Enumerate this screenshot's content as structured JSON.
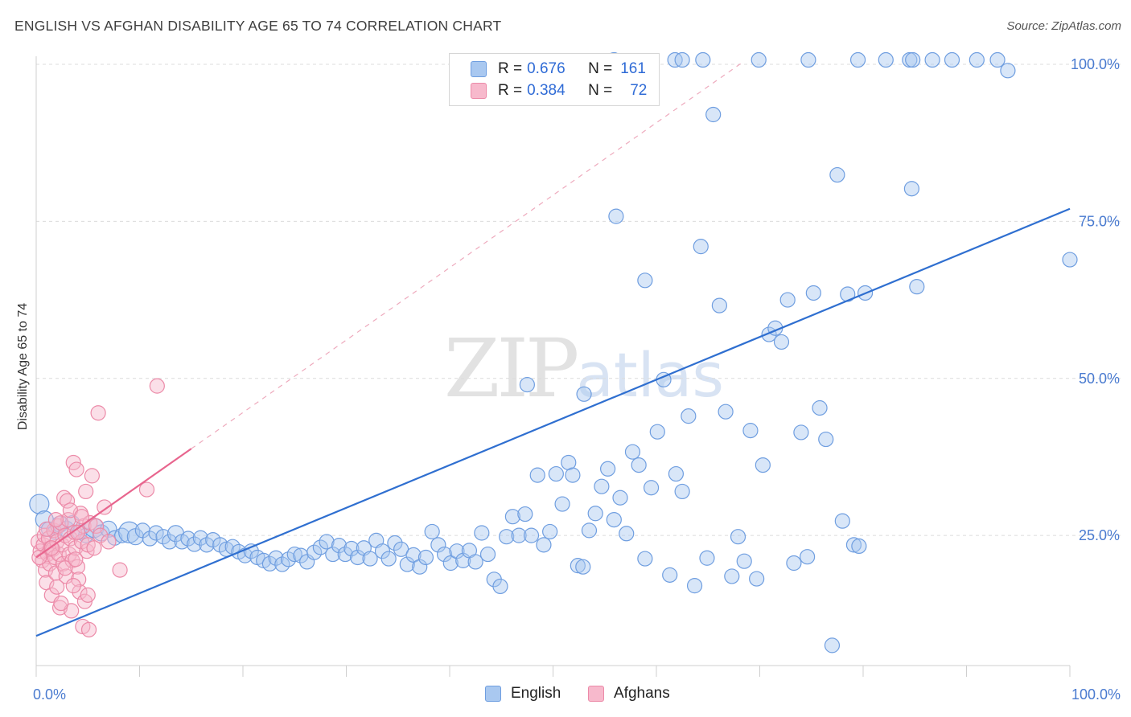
{
  "header": {
    "title": "ENGLISH VS AFGHAN DISABILITY AGE 65 TO 74 CORRELATION CHART",
    "source": "Source: ZipAtlas.com"
  },
  "watermark": {
    "zip": "ZIP",
    "atlas": "atlas"
  },
  "legend": {
    "rows": [
      {
        "r_label": "R =",
        "r_value": "0.676",
        "n_label": "N =",
        "n_value": "161",
        "color": "#a9c8f0",
        "border": "#6f9ee0"
      },
      {
        "r_label": "R =",
        "r_value": "0.384",
        "n_label": "N =",
        "n_value": "72",
        "color": "#f7b9cc",
        "border": "#ec8aa8"
      }
    ]
  },
  "bottom_legend": [
    {
      "label": "English",
      "color": "#a9c8f0",
      "border": "#6f9ee0"
    },
    {
      "label": "Afghans",
      "color": "#f7b9cc",
      "border": "#ec8aa8"
    }
  ],
  "chart_data": {
    "type": "scatter",
    "title": "ENGLISH VS AFGHAN DISABILITY AGE 65 TO 74 CORRELATION CHART",
    "xlabel": "",
    "ylabel": "Disability Age 65 to 74",
    "xlim": [
      0,
      100
    ],
    "ylim": [
      0,
      102
    ],
    "x_ticks": [
      {
        "value": 0,
        "label": "0.0%"
      },
      {
        "value": 100,
        "label": "100.0%"
      }
    ],
    "y_ticks": [
      {
        "value": 25,
        "label": "25.0%"
      },
      {
        "value": 50,
        "label": "50.0%"
      },
      {
        "value": 75,
        "label": "75.0%"
      },
      {
        "value": 100,
        "label": "100.0%"
      }
    ],
    "grid": "horizontal dashed",
    "legend_position": "top-center",
    "colors": {
      "english": "#2f6fd0",
      "afghans": "#e8658e"
    },
    "series": [
      {
        "name": "English",
        "fill": "#a9c8f0",
        "stroke": "#6f9ee0",
        "trend": {
          "x": [
            0,
            100
          ],
          "y": [
            9.0,
            77.0
          ]
        },
        "points": [
          [
            0.3,
            30.0,
            12
          ],
          [
            0.8,
            27.5,
            11
          ],
          [
            1.2,
            26.0,
            9
          ],
          [
            1.8,
            25.5,
            9
          ],
          [
            2.3,
            26.8,
            10
          ],
          [
            2.9,
            26.0,
            10
          ],
          [
            3.5,
            27.0,
            9
          ],
          [
            4.2,
            25.5,
            9
          ],
          [
            4.8,
            25.0,
            9
          ],
          [
            5.6,
            26.2,
            12
          ],
          [
            6.3,
            25.4,
            10
          ],
          [
            7.0,
            26.0,
            10
          ],
          [
            7.6,
            24.6,
            9
          ],
          [
            8.3,
            25.0,
            9
          ],
          [
            9.0,
            25.5,
            13
          ],
          [
            9.6,
            24.8,
            10
          ],
          [
            10.3,
            25.8,
            9
          ],
          [
            11.0,
            24.5,
            9
          ],
          [
            11.6,
            25.4,
            9
          ],
          [
            12.3,
            24.8,
            9
          ],
          [
            12.9,
            24.0,
            9
          ],
          [
            13.5,
            25.3,
            10
          ],
          [
            14.1,
            24.0,
            9
          ],
          [
            14.7,
            24.5,
            9
          ],
          [
            15.3,
            23.6,
            9
          ],
          [
            15.9,
            24.6,
            9
          ],
          [
            16.5,
            23.5,
            9
          ],
          [
            17.1,
            24.3,
            9
          ],
          [
            17.8,
            23.5,
            9
          ],
          [
            18.4,
            22.8,
            9
          ],
          [
            19.0,
            23.2,
            9
          ],
          [
            19.6,
            22.4,
            9
          ],
          [
            20.2,
            21.8,
            9
          ],
          [
            20.8,
            22.5,
            9
          ],
          [
            21.4,
            21.5,
            9
          ],
          [
            22.0,
            21.0,
            9
          ],
          [
            22.6,
            20.5,
            9
          ],
          [
            23.2,
            21.4,
            9
          ],
          [
            23.8,
            20.4,
            9
          ],
          [
            24.4,
            21.2,
            9
          ],
          [
            25.0,
            22.0,
            9
          ],
          [
            25.6,
            21.8,
            9
          ],
          [
            26.2,
            20.8,
            9
          ],
          [
            26.9,
            22.3,
            9
          ],
          [
            27.5,
            23.1,
            9
          ],
          [
            28.1,
            24.0,
            9
          ],
          [
            28.7,
            22.0,
            9
          ],
          [
            29.3,
            23.4,
            9
          ],
          [
            29.9,
            22.0,
            9
          ],
          [
            30.5,
            22.9,
            9
          ],
          [
            31.1,
            21.5,
            9
          ],
          [
            31.7,
            23.0,
            9
          ],
          [
            32.3,
            21.3,
            9
          ],
          [
            32.9,
            24.2,
            9
          ],
          [
            33.5,
            22.5,
            9
          ],
          [
            34.1,
            21.3,
            9
          ],
          [
            34.7,
            23.8,
            9
          ],
          [
            35.3,
            22.8,
            9
          ],
          [
            35.9,
            20.4,
            9
          ],
          [
            36.5,
            21.9,
            9
          ],
          [
            37.1,
            20.0,
            9
          ],
          [
            37.7,
            21.5,
            9
          ],
          [
            38.3,
            25.6,
            9
          ],
          [
            38.9,
            23.5,
            9
          ],
          [
            39.5,
            22.0,
            9
          ],
          [
            40.1,
            20.6,
            9
          ],
          [
            40.7,
            22.5,
            9
          ],
          [
            41.3,
            21.0,
            9
          ],
          [
            41.9,
            22.6,
            9
          ],
          [
            42.5,
            20.8,
            9
          ],
          [
            43.1,
            25.4,
            9
          ],
          [
            43.7,
            22.0,
            9
          ],
          [
            44.3,
            18.0,
            9
          ],
          [
            44.9,
            16.9,
            9
          ],
          [
            45.5,
            24.8,
            9
          ],
          [
            46.1,
            28.0,
            9
          ],
          [
            46.7,
            25.0,
            9
          ],
          [
            47.3,
            28.4,
            9
          ],
          [
            47.9,
            25.0,
            9
          ],
          [
            48.5,
            34.6,
            9
          ],
          [
            49.1,
            23.5,
            9
          ],
          [
            49.7,
            25.6,
            9
          ],
          [
            50.3,
            34.8,
            9
          ],
          [
            50.9,
            30.0,
            9
          ],
          [
            51.5,
            36.6,
            9
          ],
          [
            51.9,
            34.6,
            9
          ],
          [
            52.4,
            20.2,
            9
          ],
          [
            52.9,
            20.0,
            9
          ],
          [
            53.5,
            25.8,
            9
          ],
          [
            54.1,
            28.5,
            9
          ],
          [
            54.7,
            32.8,
            9
          ],
          [
            55.3,
            35.6,
            9
          ],
          [
            55.9,
            27.5,
            9
          ],
          [
            56.5,
            31.0,
            9
          ],
          [
            57.1,
            25.3,
            9
          ],
          [
            57.7,
            38.3,
            9
          ],
          [
            58.3,
            36.2,
            9
          ],
          [
            58.9,
            21.3,
            9
          ],
          [
            59.5,
            32.6,
            9
          ],
          [
            60.1,
            41.5,
            9
          ],
          [
            60.7,
            49.8,
            9
          ],
          [
            61.3,
            18.7,
            9
          ],
          [
            61.9,
            34.8,
            9
          ],
          [
            62.5,
            32.0,
            9
          ],
          [
            63.1,
            44.0,
            9
          ],
          [
            63.7,
            17.0,
            9
          ],
          [
            64.3,
            71.0,
            9
          ],
          [
            64.9,
            21.4,
            9
          ],
          [
            65.5,
            92.0,
            9
          ],
          [
            66.1,
            61.6,
            9
          ],
          [
            66.7,
            44.7,
            9
          ],
          [
            67.3,
            18.5,
            9
          ],
          [
            67.9,
            24.8,
            9
          ],
          [
            68.5,
            20.9,
            9
          ],
          [
            69.1,
            41.7,
            9
          ],
          [
            69.7,
            18.1,
            9
          ],
          [
            70.3,
            36.2,
            9
          ],
          [
            70.9,
            57.0,
            9
          ],
          [
            71.5,
            58.0,
            9
          ],
          [
            72.1,
            55.8,
            9
          ],
          [
            72.7,
            62.5,
            9
          ],
          [
            73.3,
            20.6,
            9
          ],
          [
            74.0,
            41.4,
            9
          ],
          [
            74.6,
            21.6,
            9
          ],
          [
            75.2,
            63.6,
            9
          ],
          [
            75.8,
            45.3,
            9
          ],
          [
            76.4,
            40.3,
            9
          ],
          [
            77.0,
            7.5,
            9
          ],
          [
            77.5,
            82.4,
            9
          ],
          [
            78.0,
            27.3,
            9
          ],
          [
            78.5,
            63.4,
            9
          ],
          [
            79.1,
            23.5,
            9
          ],
          [
            79.6,
            23.3,
            9
          ],
          [
            80.2,
            63.6,
            9
          ],
          [
            84.7,
            80.2,
            9
          ],
          [
            85.2,
            64.6,
            9
          ],
          [
            94.0,
            99.0,
            9
          ],
          [
            100.0,
            68.9,
            9
          ],
          [
            56.1,
            75.8,
            9
          ],
          [
            53.0,
            47.5,
            9
          ],
          [
            55.9,
            100.7,
            9
          ],
          [
            61.8,
            100.7,
            9
          ],
          [
            62.5,
            100.7,
            9
          ],
          [
            64.5,
            100.7,
            9
          ],
          [
            69.9,
            100.7,
            9
          ],
          [
            74.7,
            100.7,
            9
          ],
          [
            79.5,
            100.7,
            9
          ],
          [
            82.2,
            100.7,
            9
          ],
          [
            84.5,
            100.7,
            9
          ],
          [
            84.8,
            100.7,
            9
          ],
          [
            86.7,
            100.7,
            9
          ],
          [
            88.6,
            100.7,
            9
          ],
          [
            91.0,
            100.7,
            9
          ],
          [
            93.0,
            100.7,
            9
          ],
          [
            47.5,
            49.0,
            9
          ],
          [
            58.9,
            65.6,
            9
          ]
        ]
      },
      {
        "name": "Afghans",
        "fill": "#f7b9cc",
        "stroke": "#ec8aa8",
        "trend": {
          "x": [
            0,
            15
          ],
          "y": [
            21.5,
            38.8
          ]
        },
        "points": [
          [
            0.2,
            24.0,
            9
          ],
          [
            0.4,
            22.5,
            9
          ],
          [
            0.6,
            21.0,
            9
          ],
          [
            0.7,
            23.5,
            9
          ],
          [
            0.8,
            25.0,
            9
          ],
          [
            0.9,
            19.5,
            9
          ],
          [
            1.0,
            17.5,
            9
          ],
          [
            1.1,
            22.0,
            9
          ],
          [
            1.2,
            24.5,
            9
          ],
          [
            1.3,
            20.5,
            9
          ],
          [
            1.4,
            23.0,
            9
          ],
          [
            1.5,
            15.5,
            9
          ],
          [
            1.6,
            22.8,
            9
          ],
          [
            1.7,
            25.8,
            9
          ],
          [
            1.8,
            21.5,
            9
          ],
          [
            1.9,
            19.0,
            9
          ],
          [
            2.0,
            24.0,
            9
          ],
          [
            2.1,
            26.5,
            9
          ],
          [
            2.2,
            22.0,
            9
          ],
          [
            2.3,
            13.5,
            9
          ],
          [
            2.4,
            27.0,
            9
          ],
          [
            2.5,
            23.5,
            9
          ],
          [
            2.6,
            20.5,
            9
          ],
          [
            2.7,
            31.0,
            9
          ],
          [
            2.8,
            25.0,
            9
          ],
          [
            2.9,
            18.5,
            9
          ],
          [
            3.0,
            30.5,
            9
          ],
          [
            3.1,
            27.5,
            9
          ],
          [
            3.2,
            22.0,
            9
          ],
          [
            3.3,
            24.5,
            9
          ],
          [
            3.4,
            13.0,
            9
          ],
          [
            3.5,
            21.0,
            9
          ],
          [
            3.6,
            36.6,
            9
          ],
          [
            3.7,
            25.5,
            9
          ],
          [
            3.8,
            23.0,
            9
          ],
          [
            3.9,
            35.5,
            9
          ],
          [
            4.0,
            20.0,
            9
          ],
          [
            4.1,
            18.0,
            9
          ],
          [
            4.2,
            16.0,
            9
          ],
          [
            4.3,
            28.5,
            9
          ],
          [
            4.4,
            24.0,
            9
          ],
          [
            4.5,
            10.5,
            9
          ],
          [
            4.6,
            26.5,
            9
          ],
          [
            4.7,
            14.5,
            9
          ],
          [
            4.8,
            32.0,
            9
          ],
          [
            4.9,
            22.5,
            9
          ],
          [
            5.0,
            23.5,
            9
          ],
          [
            5.1,
            10.0,
            9
          ],
          [
            5.2,
            27.0,
            9
          ],
          [
            5.4,
            34.5,
            9
          ],
          [
            5.6,
            23.0,
            9
          ],
          [
            5.8,
            26.5,
            9
          ],
          [
            6.0,
            44.5,
            9
          ],
          [
            6.2,
            25.0,
            9
          ],
          [
            6.6,
            29.5,
            9
          ],
          [
            7.0,
            24.0,
            9
          ],
          [
            8.1,
            19.5,
            9
          ],
          [
            10.7,
            32.3,
            9
          ],
          [
            11.7,
            48.8,
            9
          ],
          [
            2.4,
            14.2,
            9
          ],
          [
            3.6,
            17.0,
            9
          ],
          [
            1.0,
            26.0,
            9
          ],
          [
            2.0,
            16.8,
            9
          ],
          [
            4.0,
            25.5,
            9
          ],
          [
            1.5,
            23.0,
            9
          ],
          [
            3.3,
            29.0,
            9
          ],
          [
            0.3,
            21.5,
            9
          ],
          [
            2.8,
            19.8,
            9
          ],
          [
            5.0,
            15.5,
            9
          ],
          [
            1.9,
            27.5,
            9
          ],
          [
            3.8,
            21.2,
            9
          ],
          [
            4.4,
            28.0,
            9
          ]
        ]
      }
    ]
  }
}
